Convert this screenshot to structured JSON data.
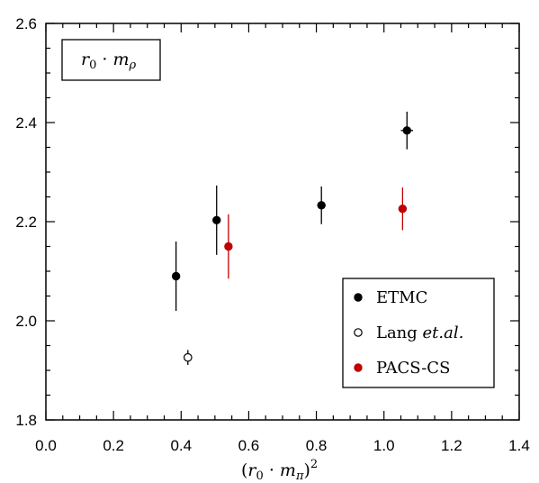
{
  "chart_data": {
    "type": "scatter",
    "xlabel": "(r0 · mπ)2",
    "ylabel": "",
    "xlim": [
      0.0,
      1.4
    ],
    "ylim": [
      1.8,
      2.6
    ],
    "x_ticks": [
      "0.0",
      "0.2",
      "0.4",
      "0.6",
      "0.8",
      "1.0",
      "1.2",
      "1.4"
    ],
    "y_ticks": [
      "1.8",
      "2.0",
      "2.2",
      "2.4",
      "2.6"
    ],
    "grid": false,
    "annotation": "r0 · mρ",
    "legend_position": "bottom-right",
    "series": [
      {
        "name": "ETMC",
        "marker": "filled-circle",
        "color": "#000000",
        "points": [
          {
            "x": 0.385,
            "y": 2.09,
            "yerr": 0.07,
            "xerr": 0.004
          },
          {
            "x": 0.505,
            "y": 2.203,
            "yerr": 0.07,
            "xerr": 0.006
          },
          {
            "x": 0.815,
            "y": 2.233,
            "yerr": 0.038,
            "xerr": 0.012
          },
          {
            "x": 1.068,
            "y": 2.384,
            "yerr": 0.038,
            "xerr": 0.018
          }
        ]
      },
      {
        "name": "Lang et.al.",
        "marker": "open-circle",
        "color": "#000000",
        "points": [
          {
            "x": 0.42,
            "y": 1.926,
            "yerr": 0.015,
            "xerr": 0.0
          }
        ]
      },
      {
        "name": "PACS-CS",
        "marker": "filled-circle",
        "color": "#c00000",
        "points": [
          {
            "x": 0.54,
            "y": 2.15,
            "yerr": 0.065,
            "xerr": 0.0
          },
          {
            "x": 1.055,
            "y": 2.226,
            "yerr": 0.043,
            "xerr": 0.012
          }
        ]
      }
    ]
  }
}
